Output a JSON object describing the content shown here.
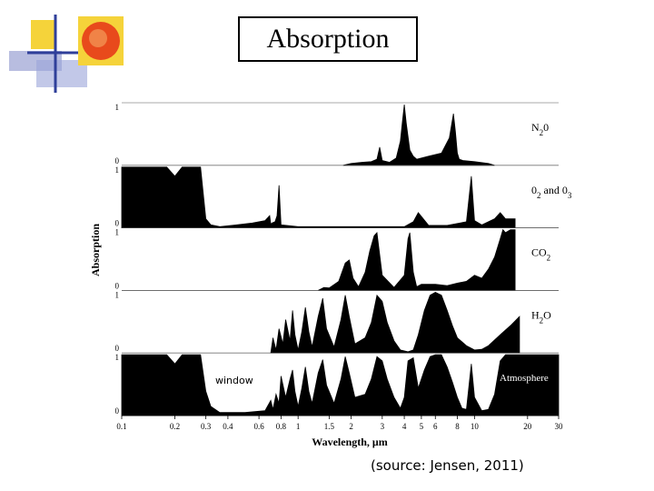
{
  "slide": {
    "title": "Absorption",
    "source": "(source: Jensen, 2011)"
  },
  "colors": {
    "fill": "#000000",
    "deco_yellow": "#f5d33a",
    "deco_blue": "#2f3f9a",
    "deco_sun": "#e84a1c"
  },
  "chart_data": {
    "type": "area",
    "title": "",
    "xlabel": "Wavelength, μm",
    "ylabel": "Absorption",
    "xscale": "log",
    "xlim": [
      0.1,
      30
    ],
    "ylim": [
      0,
      1
    ],
    "xticks": [
      {
        "value": 0.1,
        "label": "0.1"
      },
      {
        "value": 0.2,
        "label": "0.2"
      },
      {
        "value": 0.3,
        "label": "0.3"
      },
      {
        "value": 0.4,
        "label": "0.4"
      },
      {
        "value": 0.6,
        "label": "0.6"
      },
      {
        "value": 0.8,
        "label": "0.8"
      },
      {
        "value": 1,
        "label": "1"
      },
      {
        "value": 1.5,
        "label": "1.5"
      },
      {
        "value": 2,
        "label": "2"
      },
      {
        "value": 3,
        "label": "3"
      },
      {
        "value": 4,
        "label": "4"
      },
      {
        "value": 5,
        "label": "5"
      },
      {
        "value": 6,
        "label": "6"
      },
      {
        "value": 8,
        "label": "8"
      },
      {
        "value": 10,
        "label": "10"
      },
      {
        "value": 20,
        "label": "20"
      },
      {
        "value": 30,
        "label": "30"
      }
    ],
    "panel_axis_labels": {
      "top": "1",
      "bottom": "0"
    },
    "annotations": [
      {
        "text": "window",
        "panel": "Atmosphere"
      }
    ],
    "series": [
      {
        "name": "N20",
        "label_main": "N",
        "label_sub1": "2",
        "label_mid": "0",
        "label_sub2": "",
        "label_tail": "",
        "x": [
          1.8,
          2.0,
          2.3,
          2.6,
          2.8,
          2.9,
          3.0,
          3.3,
          3.6,
          3.8,
          3.9,
          4.0,
          4.1,
          4.3,
          4.5,
          4.7,
          5.5,
          6.5,
          7.2,
          7.6,
          7.8,
          8.0,
          8.2,
          8.6,
          10.0,
          12.0,
          13.0
        ],
        "y": [
          0.0,
          0.03,
          0.05,
          0.06,
          0.1,
          0.3,
          0.08,
          0.05,
          0.12,
          0.4,
          0.7,
          1.0,
          0.7,
          0.25,
          0.15,
          0.1,
          0.15,
          0.2,
          0.45,
          0.85,
          0.55,
          0.2,
          0.1,
          0.08,
          0.06,
          0.03,
          0.0
        ]
      },
      {
        "name": "02 and 03",
        "label_main": "0",
        "label_sub1": "2",
        "label_mid": " and 0",
        "label_sub2": "3",
        "label_tail": "",
        "x": [
          0.1,
          0.18,
          0.2,
          0.22,
          0.28,
          0.3,
          0.32,
          0.36,
          0.45,
          0.55,
          0.6,
          0.65,
          0.69,
          0.7,
          0.71,
          0.74,
          0.76,
          0.78,
          0.8,
          1.0,
          2.0,
          3.0,
          4.0,
          4.5,
          4.8,
          5.5,
          7.0,
          9.0,
          9.4,
          9.6,
          10.0,
          11.0,
          13.0,
          14.0,
          15.0,
          17.0
        ],
        "y": [
          1.0,
          1.0,
          0.85,
          1.0,
          1.0,
          0.15,
          0.05,
          0.02,
          0.05,
          0.08,
          0.1,
          0.12,
          0.2,
          0.06,
          0.08,
          0.1,
          0.2,
          0.7,
          0.05,
          0.02,
          0.02,
          0.02,
          0.02,
          0.1,
          0.25,
          0.04,
          0.04,
          0.1,
          0.6,
          0.85,
          0.12,
          0.05,
          0.15,
          0.25,
          0.15,
          0.15
        ]
      },
      {
        "name": "CO2",
        "label_main": "CO",
        "label_sub1": "2",
        "label_mid": "",
        "label_sub2": "",
        "label_tail": "",
        "x": [
          1.3,
          1.4,
          1.5,
          1.7,
          1.85,
          1.95,
          2.05,
          2.2,
          2.4,
          2.55,
          2.7,
          2.8,
          3.0,
          3.5,
          4.0,
          4.2,
          4.3,
          4.5,
          4.7,
          5.0,
          6.0,
          7.0,
          8.0,
          9.0,
          10.0,
          11.0,
          12.0,
          13.0,
          14.0,
          14.5,
          15.0,
          16.0,
          17.0
        ],
        "y": [
          0.0,
          0.05,
          0.04,
          0.15,
          0.45,
          0.5,
          0.2,
          0.06,
          0.3,
          0.65,
          0.9,
          0.95,
          0.25,
          0.05,
          0.25,
          0.85,
          0.95,
          0.3,
          0.06,
          0.1,
          0.1,
          0.08,
          0.12,
          0.15,
          0.25,
          0.2,
          0.35,
          0.55,
          0.85,
          1.0,
          0.95,
          1.0,
          1.0
        ]
      },
      {
        "name": "H2O",
        "label_main": "H",
        "label_sub1": "2",
        "label_mid": "O",
        "label_sub2": "",
        "label_tail": "",
        "x": [
          0.7,
          0.72,
          0.75,
          0.78,
          0.82,
          0.85,
          0.9,
          0.93,
          0.96,
          1.0,
          1.05,
          1.1,
          1.15,
          1.2,
          1.3,
          1.38,
          1.45,
          1.6,
          1.75,
          1.85,
          1.95,
          2.1,
          2.4,
          2.6,
          2.8,
          3.0,
          3.2,
          3.5,
          3.8,
          4.2,
          4.5,
          4.8,
          5.2,
          5.6,
          6.0,
          6.5,
          7.0,
          7.5,
          8.0,
          9.0,
          10.0,
          11.0,
          12.0,
          14.0,
          16.0,
          18.0
        ],
        "y": [
          0.0,
          0.25,
          0.05,
          0.4,
          0.15,
          0.55,
          0.2,
          0.7,
          0.3,
          0.05,
          0.35,
          0.75,
          0.35,
          0.1,
          0.6,
          0.9,
          0.4,
          0.1,
          0.55,
          0.95,
          0.6,
          0.15,
          0.25,
          0.5,
          0.95,
          0.85,
          0.5,
          0.2,
          0.05,
          0.02,
          0.05,
          0.3,
          0.7,
          0.95,
          1.0,
          0.95,
          0.7,
          0.45,
          0.25,
          0.12,
          0.05,
          0.06,
          0.12,
          0.3,
          0.45,
          0.6
        ]
      },
      {
        "name": "Atmosphere",
        "label_main": "Atmosphere",
        "label_sub1": "",
        "label_mid": "",
        "label_sub2": "",
        "label_tail": "",
        "x": [
          0.1,
          0.18,
          0.2,
          0.22,
          0.28,
          0.3,
          0.32,
          0.36,
          0.5,
          0.65,
          0.7,
          0.72,
          0.75,
          0.78,
          0.8,
          0.85,
          0.9,
          0.93,
          0.96,
          1.0,
          1.05,
          1.1,
          1.15,
          1.2,
          1.3,
          1.38,
          1.45,
          1.6,
          1.75,
          1.85,
          1.95,
          2.1,
          2.4,
          2.6,
          2.8,
          3.0,
          3.2,
          3.5,
          3.8,
          4.0,
          4.2,
          4.5,
          4.8,
          5.2,
          5.6,
          6.0,
          6.5,
          7.0,
          7.5,
          8.0,
          8.5,
          9.0,
          9.6,
          10.0,
          11.0,
          12.0,
          13.0,
          14.0,
          15.0,
          16.0,
          18.0,
          20.0,
          30.0
        ],
        "y": [
          1.0,
          1.0,
          0.85,
          1.0,
          1.0,
          0.4,
          0.15,
          0.05,
          0.05,
          0.08,
          0.25,
          0.1,
          0.35,
          0.2,
          0.65,
          0.3,
          0.6,
          0.75,
          0.4,
          0.15,
          0.45,
          0.8,
          0.4,
          0.2,
          0.7,
          0.92,
          0.5,
          0.2,
          0.6,
          0.97,
          0.7,
          0.3,
          0.35,
          0.6,
          0.97,
          0.9,
          0.6,
          0.3,
          0.12,
          0.3,
          0.9,
          0.95,
          0.45,
          0.75,
          0.97,
          1.0,
          1.0,
          0.8,
          0.55,
          0.3,
          0.12,
          0.1,
          0.85,
          0.3,
          0.08,
          0.1,
          0.35,
          0.9,
          1.0,
          1.0,
          1.0,
          1.0,
          1.0
        ]
      }
    ]
  }
}
